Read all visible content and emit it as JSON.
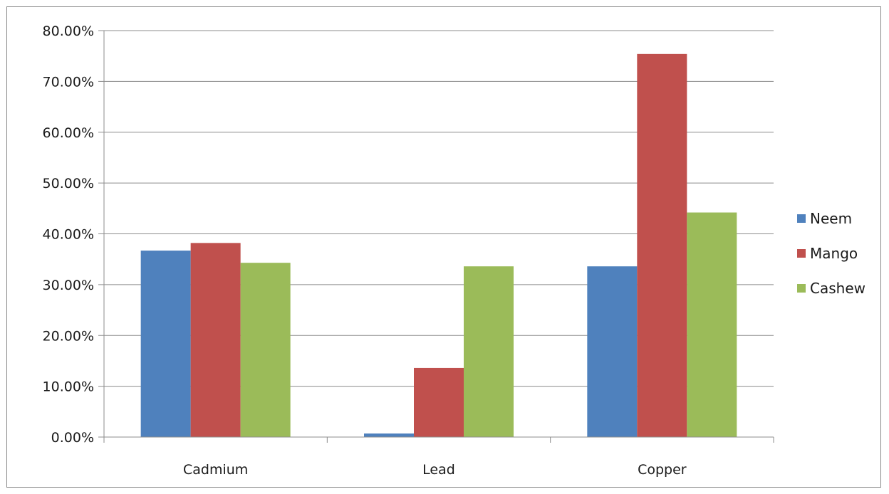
{
  "chart_data": {
    "type": "bar",
    "title": "",
    "xlabel": "",
    "ylabel": "",
    "categories": [
      "Cadmium",
      "Lead",
      "Copper"
    ],
    "series": [
      {
        "name": "Neem",
        "values": [
          0.367,
          0.007,
          0.336
        ],
        "color": "#4F81BD"
      },
      {
        "name": "Mango",
        "values": [
          0.382,
          0.136,
          0.754
        ],
        "color": "#C0504D"
      },
      {
        "name": "Cashew",
        "values": [
          0.343,
          0.336,
          0.442
        ],
        "color": "#9BBB59"
      }
    ],
    "ylim": [
      0,
      0.8
    ],
    "yticks": [
      0,
      0.1,
      0.2,
      0.3,
      0.4,
      0.5,
      0.6,
      0.7,
      0.8
    ],
    "ytick_labels": [
      "0.00%",
      "10.00%",
      "20.00%",
      "30.00%",
      "40.00%",
      "50.00%",
      "60.00%",
      "70.00%",
      "80.00%"
    ],
    "grid": true,
    "legend_position": "right"
  }
}
